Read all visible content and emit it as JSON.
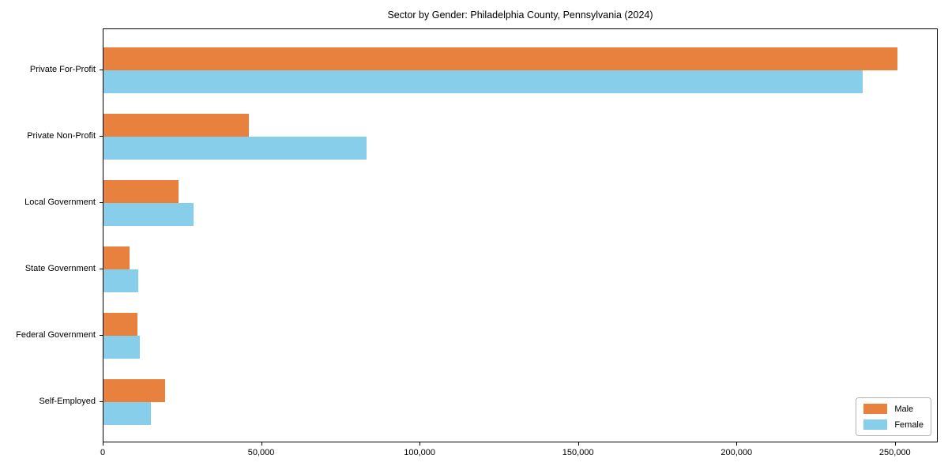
{
  "chart_data": {
    "type": "bar",
    "orientation": "horizontal",
    "title": "Sector by Gender: Philadelphia County, Pennsylvania (2024)",
    "categories": [
      "Private For-Profit",
      "Private Non-Profit",
      "Local Government",
      "State Government",
      "Federal Government",
      "Self-Employed"
    ],
    "series": [
      {
        "name": "Male",
        "color": "#e8813d",
        "values": [
          250500,
          45900,
          23700,
          8200,
          10700,
          19400
        ]
      },
      {
        "name": "Female",
        "color": "#87ceeb",
        "values": [
          239500,
          83000,
          28400,
          10900,
          11500,
          15000
        ]
      }
    ],
    "xlabel": "",
    "ylabel": "",
    "x_ticks": [
      0,
      50000,
      100000,
      150000,
      200000,
      250000
    ],
    "x_tick_labels": [
      "0",
      "50,000",
      "100,000",
      "150,000",
      "200,000",
      "250,000"
    ],
    "xlim": [
      0,
      263500
    ],
    "grid": false,
    "legend": {
      "position": "lower right"
    },
    "colors": {
      "male": "#e8813d",
      "female": "#87ceeb",
      "frame": "#000000",
      "legend_border": "#b3b3b3"
    }
  }
}
